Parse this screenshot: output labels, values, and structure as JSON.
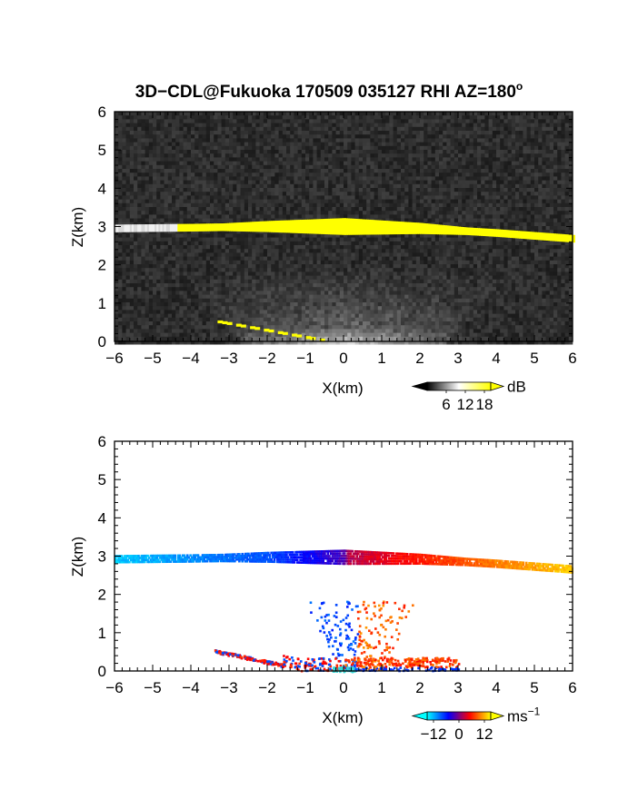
{
  "title_main": "3D−CDL@Fukuoka 170509 035127 RHI AZ=180",
  "title_deg": "o",
  "chart_data": [
    {
      "type": "heatmap",
      "panel": "top",
      "description_quantity": "backscatter intensity",
      "xlabel": "X(km)",
      "ylabel": "Z(km)",
      "xlim": [
        -6,
        6
      ],
      "ylim": [
        0,
        6
      ],
      "xticks": [
        "−6",
        "−5",
        "−4",
        "−3",
        "−2",
        "−1",
        "0",
        "1",
        "2",
        "3",
        "4",
        "5",
        "6"
      ],
      "yticks": [
        "0",
        "1",
        "2",
        "3",
        "4",
        "5",
        "6"
      ],
      "colorbar": {
        "unit": "dB",
        "ticks": [
          "6",
          "12",
          "18"
        ],
        "range": [
          0,
          20
        ],
        "colors": [
          "#000000",
          "#ffffff",
          "#ffff00"
        ]
      },
      "features": {
        "layer_height_km": [
          [
            -6,
            2.95
          ],
          [
            -4,
            2.97
          ],
          [
            -2,
            3.0
          ],
          [
            0,
            3.0
          ],
          [
            2,
            2.95
          ],
          [
            4,
            2.83
          ],
          [
            6,
            2.68
          ]
        ],
        "surface_echo_x_km": [
          -1.2,
          3.0
        ],
        "slant_echo": [
          [
            -3.3,
            0.5
          ],
          [
            -0.6,
            0.02
          ]
        ]
      }
    },
    {
      "type": "heatmap",
      "panel": "bottom",
      "description_quantity": "radial velocity",
      "xlabel": "X(km)",
      "ylabel": "Z(km)",
      "xlim": [
        -6,
        6
      ],
      "ylim": [
        0,
        6
      ],
      "xticks": [
        "−6",
        "−5",
        "−4",
        "−3",
        "−2",
        "−1",
        "0",
        "1",
        "2",
        "3",
        "4",
        "5",
        "6"
      ],
      "yticks": [
        "0",
        "1",
        "2",
        "3",
        "4",
        "5",
        "6"
      ],
      "colorbar": {
        "unit": "ms",
        "unit_exp": "−1",
        "ticks": [
          "−12",
          "0",
          "12"
        ],
        "range": [
          -15,
          15
        ],
        "colors": [
          "#00ffff",
          "#0000ff",
          "#ff0000",
          "#ffff00"
        ]
      },
      "features": {
        "layer_velocity": [
          [
            -6,
            -13
          ],
          [
            -2,
            -8
          ],
          [
            0,
            -2
          ],
          [
            0.1,
            2
          ],
          [
            2,
            6
          ],
          [
            4,
            10
          ],
          [
            6,
            13
          ]
        ],
        "layer_height_km": [
          [
            -6,
            2.95
          ],
          [
            -4,
            2.97
          ],
          [
            -2,
            3.0
          ],
          [
            0,
            3.0
          ],
          [
            2,
            2.95
          ],
          [
            4,
            2.83
          ],
          [
            6,
            2.68
          ]
        ]
      }
    }
  ]
}
